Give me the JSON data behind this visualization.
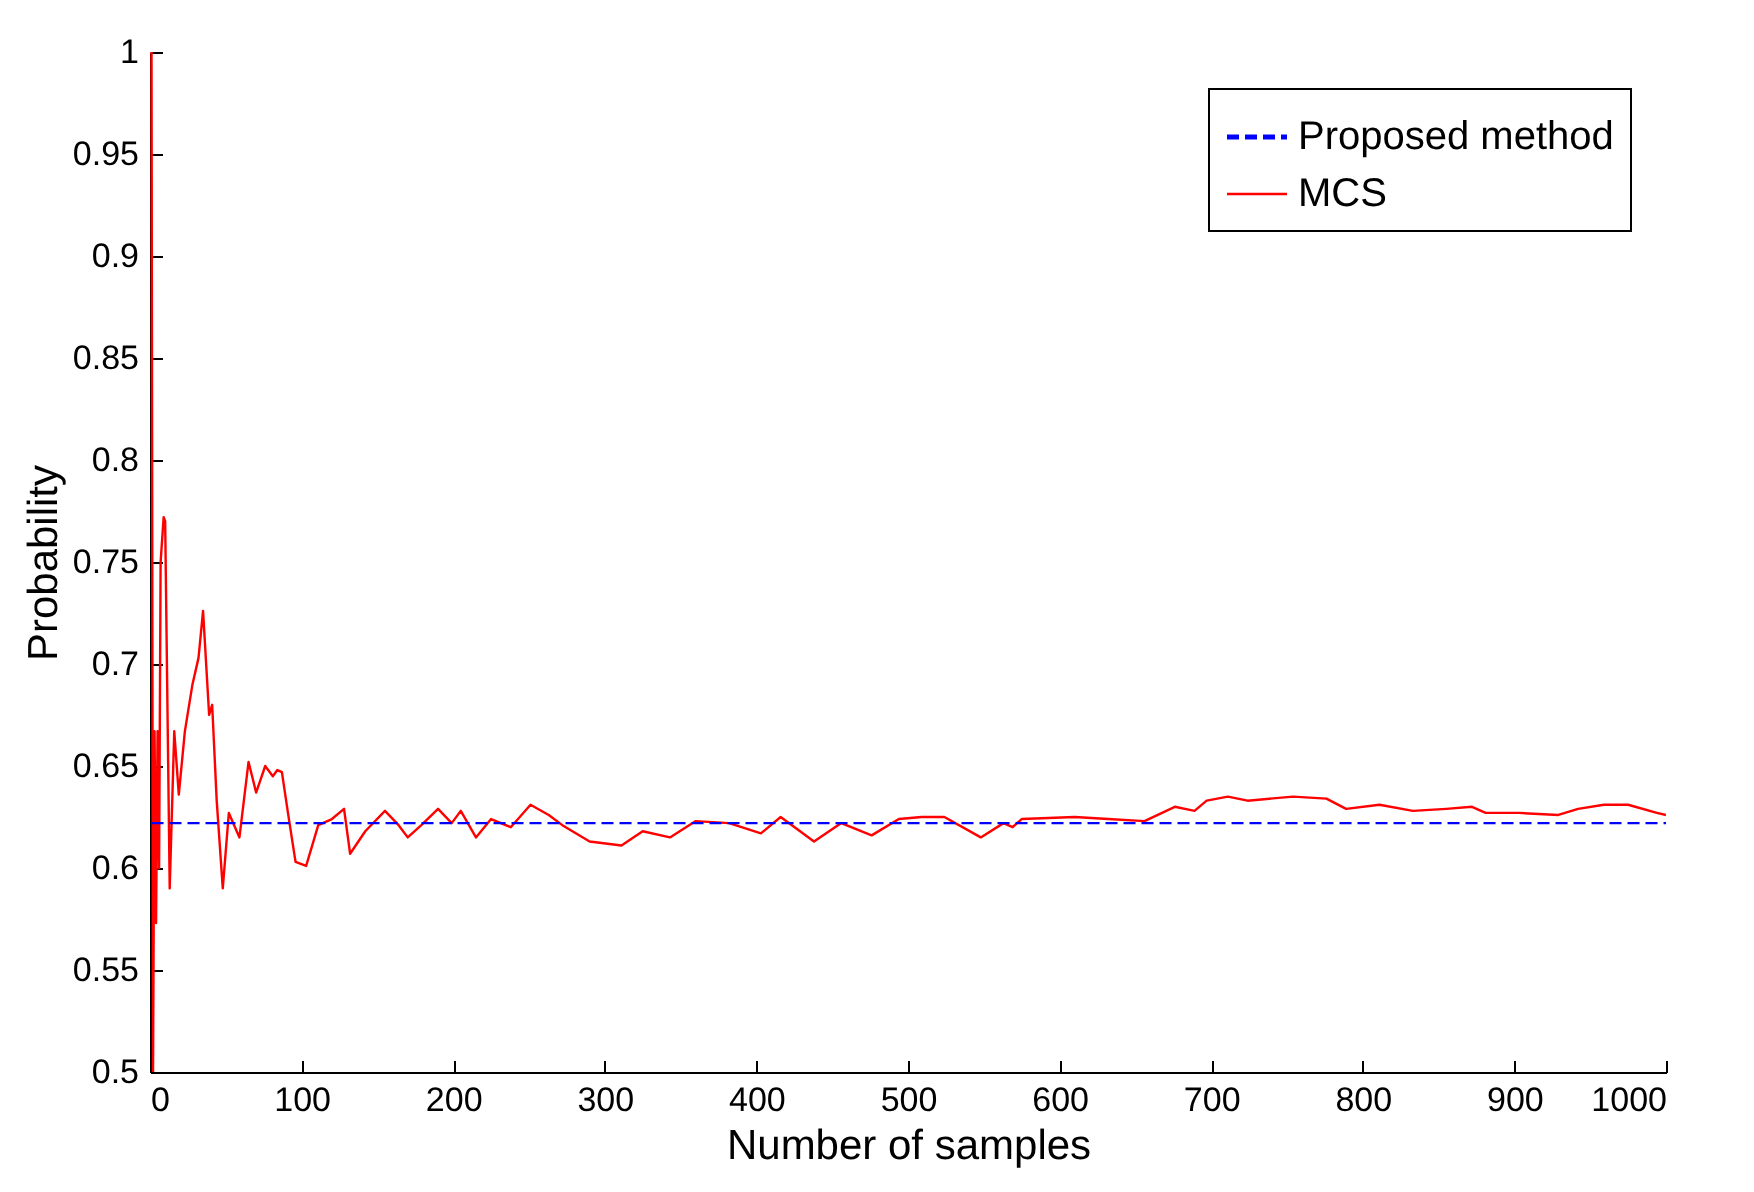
{
  "chart_data": {
    "type": "line",
    "xlabel": "Number of samples",
    "ylabel": "Probability",
    "xlim": [
      0,
      1000
    ],
    "ylim": [
      0.5,
      1
    ],
    "xticks": [
      0,
      100,
      200,
      300,
      400,
      500,
      600,
      700,
      800,
      900,
      1000
    ],
    "yticks": [
      0.5,
      0.55,
      0.6,
      0.65,
      0.7,
      0.75,
      0.8,
      0.85,
      0.9,
      0.95,
      1
    ],
    "legend": "top right",
    "grid": false,
    "series": [
      {
        "name": "Proposed method",
        "color": "#0000ff",
        "line_style": "dashed",
        "x": [
          1,
          1000
        ],
        "values": [
          0.622,
          0.622
        ]
      },
      {
        "name": "MCS",
        "color": "#ff0000",
        "line_style": "solid",
        "x": [
          1,
          2,
          3,
          4,
          5,
          6,
          7,
          9,
          10,
          13,
          16,
          19,
          23,
          28,
          32,
          35,
          39,
          41,
          44,
          48,
          52,
          59,
          65,
          70,
          76,
          81,
          84,
          87,
          91,
          96,
          103,
          111,
          120,
          128,
          132,
          142,
          155,
          164,
          170,
          179,
          190,
          199,
          205,
          215,
          225,
          238,
          251,
          263,
          272,
          290,
          311,
          325,
          343,
          360,
          382,
          403,
          416,
          438,
          456,
          476,
          494,
          509,
          524,
          548,
          563,
          569,
          575,
          610,
          632,
          656,
          676,
          689,
          697,
          711,
          724,
          754,
          776,
          789,
          811,
          833,
          855,
          872,
          881,
          903,
          929,
          942,
          959,
          975,
          994,
          1000
        ],
        "values": [
          1,
          0.5,
          0.667,
          0.573,
          0.667,
          0.6,
          0.75,
          0.772,
          0.77,
          0.59,
          0.667,
          0.636,
          0.667,
          0.69,
          0.703,
          0.726,
          0.675,
          0.68,
          0.633,
          0.59,
          0.627,
          0.615,
          0.652,
          0.637,
          0.65,
          0.645,
          0.648,
          0.647,
          0.627,
          0.603,
          0.601,
          0.621,
          0.624,
          0.629,
          0.607,
          0.618,
          0.628,
          0.621,
          0.615,
          0.621,
          0.629,
          0.622,
          0.628,
          0.615,
          0.624,
          0.62,
          0.631,
          0.626,
          0.621,
          0.613,
          0.611,
          0.618,
          0.615,
          0.623,
          0.622,
          0.617,
          0.625,
          0.613,
          0.622,
          0.616,
          0.624,
          0.625,
          0.625,
          0.615,
          0.622,
          0.62,
          0.624,
          0.625,
          0.624,
          0.623,
          0.63,
          0.628,
          0.633,
          0.635,
          0.633,
          0.635,
          0.634,
          0.629,
          0.631,
          0.628,
          0.629,
          0.63,
          0.627,
          0.627,
          0.626,
          0.629,
          0.631,
          0.631,
          0.627,
          0.626
        ]
      }
    ]
  }
}
